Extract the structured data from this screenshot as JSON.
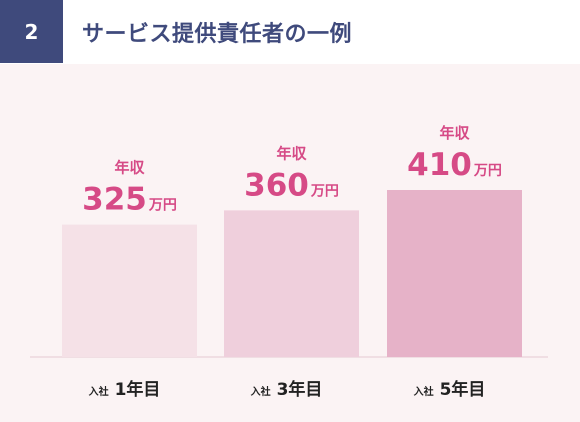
{
  "header": {
    "number": "2",
    "title": "サービス提供責任者の一例"
  },
  "colors": {
    "badge_bg": "#3f4a7c",
    "title_text": "#3f4a7c",
    "panel_bg": "#fbf3f4",
    "label_pink": "#d64a86",
    "axis_text": "#222222",
    "baseline": "#e6c9d2",
    "bar_colors": [
      "#f5e1e7",
      "#efcfdc",
      "#e6b2c8"
    ]
  },
  "chart_data": {
    "type": "bar",
    "title": "",
    "xlabel": "",
    "ylabel": "",
    "ylim": [
      0,
      410
    ],
    "grid": false,
    "legend": "none",
    "categories": [
      {
        "prefix": "入社",
        "label": "1年目"
      },
      {
        "prefix": "入社",
        "label": "3年目"
      },
      {
        "prefix": "入社",
        "label": "5年目"
      }
    ],
    "values": [
      325,
      360,
      410
    ],
    "value_label_prefix": "年収",
    "unit": "万円"
  }
}
